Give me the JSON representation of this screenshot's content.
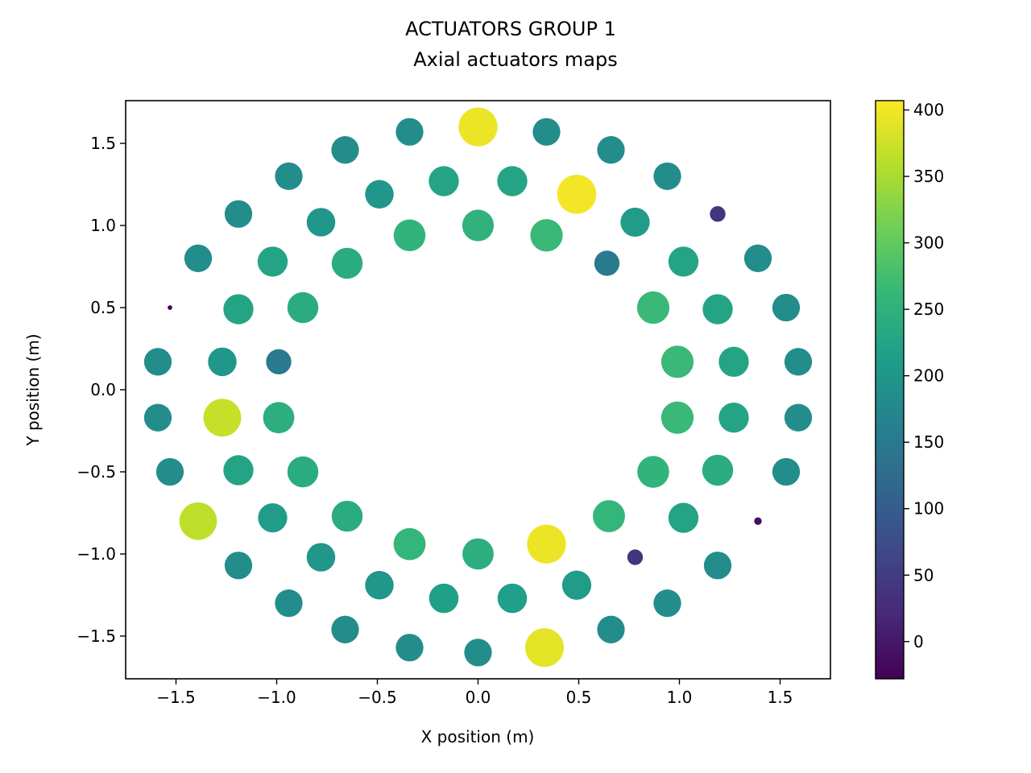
{
  "chart_data": {
    "type": "scatter",
    "title": "ACTUATORS GROUP 1",
    "subtitle": "Axial actuators maps",
    "xlabel": "X position (m)",
    "ylabel": "Y position (m)",
    "xlim": [
      -1.75,
      1.75
    ],
    "ylim": [
      -1.76,
      1.76
    ],
    "xticks": [
      -1.5,
      -1.0,
      -0.5,
      0.0,
      0.5,
      1.0,
      1.5
    ],
    "xtick_labels": [
      "−1.5",
      "−1.0",
      "−0.5",
      "0.0",
      "0.5",
      "1.0",
      "1.5"
    ],
    "yticks": [
      -1.5,
      -1.0,
      -0.5,
      0.0,
      0.5,
      1.0,
      1.5
    ],
    "ytick_labels": [
      "−1.5",
      "−1.0",
      "−0.5",
      "0.0",
      "0.5",
      "1.0",
      "1.5"
    ],
    "colorbar": {
      "colormap": "viridis",
      "range": [
        -28,
        407
      ],
      "ticks": [
        0,
        50,
        100,
        150,
        200,
        250,
        300,
        350,
        400
      ],
      "tick_labels": [
        "0",
        "50",
        "100",
        "150",
        "200",
        "250",
        "300",
        "350",
        "400"
      ]
    },
    "grid": false,
    "encoding": "marker color and size both represent the value",
    "points": [
      {
        "x": 0.0,
        "y": 1.6,
        "v": 395
      },
      {
        "x": 0.34,
        "y": 1.57,
        "v": 185
      },
      {
        "x": -0.34,
        "y": 1.57,
        "v": 185
      },
      {
        "x": 0.66,
        "y": 1.46,
        "v": 185
      },
      {
        "x": -0.66,
        "y": 1.46,
        "v": 185
      },
      {
        "x": 0.94,
        "y": 1.3,
        "v": 185
      },
      {
        "x": -0.94,
        "y": 1.3,
        "v": 185
      },
      {
        "x": 1.19,
        "y": 1.07,
        "v": 40
      },
      {
        "x": -1.19,
        "y": 1.07,
        "v": 185
      },
      {
        "x": 1.39,
        "y": 0.8,
        "v": 185
      },
      {
        "x": -1.39,
        "y": 0.8,
        "v": 185
      },
      {
        "x": 1.53,
        "y": 0.5,
        "v": 185
      },
      {
        "x": -1.53,
        "y": 0.5,
        "v": -22
      },
      {
        "x": 1.59,
        "y": 0.17,
        "v": 185
      },
      {
        "x": -1.59,
        "y": 0.17,
        "v": 185
      },
      {
        "x": 1.59,
        "y": -0.17,
        "v": 185
      },
      {
        "x": -1.59,
        "y": -0.17,
        "v": 185
      },
      {
        "x": 1.53,
        "y": -0.5,
        "v": 185
      },
      {
        "x": -1.53,
        "y": -0.5,
        "v": 185
      },
      {
        "x": 1.39,
        "y": -0.8,
        "v": -12
      },
      {
        "x": -1.39,
        "y": -0.8,
        "v": 365
      },
      {
        "x": 1.19,
        "y": -1.07,
        "v": 185
      },
      {
        "x": -1.19,
        "y": -1.07,
        "v": 185
      },
      {
        "x": 0.94,
        "y": -1.3,
        "v": 185
      },
      {
        "x": -0.94,
        "y": -1.3,
        "v": 185
      },
      {
        "x": 0.66,
        "y": -1.46,
        "v": 185
      },
      {
        "x": -0.66,
        "y": -1.46,
        "v": 185
      },
      {
        "x": 0.33,
        "y": -1.57,
        "v": 390
      },
      {
        "x": -0.34,
        "y": -1.57,
        "v": 185
      },
      {
        "x": 0.0,
        "y": -1.6,
        "v": 185
      },
      {
        "x": 0.17,
        "y": 1.27,
        "v": 225
      },
      {
        "x": -0.17,
        "y": 1.27,
        "v": 225
      },
      {
        "x": 0.49,
        "y": 1.19,
        "v": 400
      },
      {
        "x": -0.49,
        "y": 1.19,
        "v": 200
      },
      {
        "x": 0.78,
        "y": 1.02,
        "v": 210
      },
      {
        "x": -0.78,
        "y": 1.02,
        "v": 200
      },
      {
        "x": 1.02,
        "y": 0.78,
        "v": 225
      },
      {
        "x": -1.02,
        "y": 0.78,
        "v": 225
      },
      {
        "x": 1.19,
        "y": 0.49,
        "v": 225
      },
      {
        "x": -1.19,
        "y": 0.49,
        "v": 225
      },
      {
        "x": 1.27,
        "y": 0.17,
        "v": 225
      },
      {
        "x": -1.27,
        "y": 0.17,
        "v": 200
      },
      {
        "x": 1.27,
        "y": -0.17,
        "v": 225
      },
      {
        "x": -1.27,
        "y": -0.17,
        "v": 370
      },
      {
        "x": 1.19,
        "y": -0.49,
        "v": 240
      },
      {
        "x": -1.19,
        "y": -0.49,
        "v": 225
      },
      {
        "x": 1.02,
        "y": -0.78,
        "v": 225
      },
      {
        "x": -1.02,
        "y": -0.78,
        "v": 210
      },
      {
        "x": 0.78,
        "y": -1.02,
        "v": 40
      },
      {
        "x": -0.78,
        "y": -1.02,
        "v": 200
      },
      {
        "x": 0.49,
        "y": -1.19,
        "v": 210
      },
      {
        "x": -0.49,
        "y": -1.19,
        "v": 200
      },
      {
        "x": 0.17,
        "y": -1.27,
        "v": 215
      },
      {
        "x": -0.17,
        "y": -1.27,
        "v": 215
      },
      {
        "x": 0.0,
        "y": 1.0,
        "v": 250
      },
      {
        "x": 0.34,
        "y": 0.94,
        "v": 265
      },
      {
        "x": -0.34,
        "y": 0.94,
        "v": 255
      },
      {
        "x": 0.64,
        "y": 0.77,
        "v": 150
      },
      {
        "x": -0.65,
        "y": 0.77,
        "v": 240
      },
      {
        "x": 0.87,
        "y": 0.5,
        "v": 265
      },
      {
        "x": -0.87,
        "y": 0.5,
        "v": 240
      },
      {
        "x": 0.99,
        "y": 0.17,
        "v": 265
      },
      {
        "x": -0.99,
        "y": 0.17,
        "v": 150
      },
      {
        "x": 0.99,
        "y": -0.17,
        "v": 265
      },
      {
        "x": -0.99,
        "y": -0.17,
        "v": 245
      },
      {
        "x": 0.87,
        "y": -0.5,
        "v": 255
      },
      {
        "x": -0.87,
        "y": -0.5,
        "v": 240
      },
      {
        "x": 0.65,
        "y": -0.77,
        "v": 260
      },
      {
        "x": -0.65,
        "y": -0.77,
        "v": 240
      },
      {
        "x": 0.34,
        "y": -0.94,
        "v": 395
      },
      {
        "x": -0.34,
        "y": -0.94,
        "v": 260
      },
      {
        "x": 0.0,
        "y": -1.0,
        "v": 245
      }
    ]
  }
}
